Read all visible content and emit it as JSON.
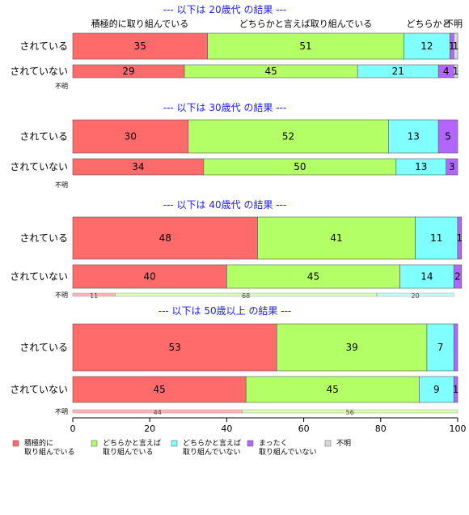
{
  "chart_data": {
    "type": "bar",
    "orientation": "horizontal",
    "stacked": true,
    "xlim": [
      0,
      100
    ],
    "xticks": [
      "0",
      "20",
      "40",
      "60",
      "80",
      "100"
    ],
    "header_labels": [
      "積極的に取り組んでいる",
      "どちらかと言えば取り組んでいる",
      "どちらかと",
      "不明"
    ],
    "legend": {
      "position": "bottom",
      "items": [
        {
          "name": "積極的に",
          "name2": "取り組んでいる",
          "color": "#ff6b6b"
        },
        {
          "name": "どちらかと言えば",
          "name2": "取り組んでいる",
          "color": "#b3ff66"
        },
        {
          "name": "どちらかと言えば",
          "name2": "取り組んでいない",
          "color": "#80ffff"
        },
        {
          "name": "まったく",
          "name2": "取り組んでいない",
          "color": "#b366ff"
        },
        {
          "name": "不明",
          "name2": "",
          "color": "#d9d9d9"
        }
      ]
    },
    "panels": [
      {
        "title": "--- 以下は 20歳代 の結果 ---",
        "rows": [
          {
            "label": "されている",
            "values": [
              35,
              51,
              12,
              1,
              1
            ],
            "labels": [
              "35",
              "51",
              "12",
              "1",
              "1"
            ]
          },
          {
            "label": "されていない",
            "values": [
              29,
              45,
              21,
              4,
              1
            ],
            "labels": [
              "29",
              "45",
              "21",
              "4",
              "1"
            ]
          }
        ],
        "unknown": {
          "label": "不明",
          "values": [],
          "labels": []
        }
      },
      {
        "title": "--- 以下は 30歳代 の結果 ---",
        "rows": [
          {
            "label": "されている",
            "values": [
              30,
              52,
              13,
              5,
              0
            ],
            "labels": [
              "30",
              "52",
              "13",
              "5",
              ""
            ]
          },
          {
            "label": "されていない",
            "values": [
              34,
              50,
              13,
              3,
              0
            ],
            "labels": [
              "34",
              "50",
              "13",
              "3",
              ""
            ]
          }
        ],
        "unknown": {
          "label": "不明",
          "values": [],
          "labels": []
        }
      },
      {
        "title": "--- 以下は 40歳代 の結果 ---",
        "rows": [
          {
            "label": "されている",
            "values": [
              48,
              41,
              11,
              1,
              0
            ],
            "labels": [
              "48",
              "41",
              "11",
              "1",
              ""
            ]
          },
          {
            "label": "されていない",
            "values": [
              40,
              45,
              14,
              2,
              0
            ],
            "labels": [
              "40",
              "45",
              "14",
              "2",
              ""
            ]
          }
        ],
        "unknown": {
          "label": "不明",
          "values": [
            11,
            68,
            20,
            0,
            0
          ],
          "labels": [
            "11",
            "68",
            "20",
            "",
            ""
          ]
        }
      },
      {
        "title": "--- 以下は 50歳以上 の結果 ---",
        "rows": [
          {
            "label": "されている",
            "values": [
              53,
              39,
              7,
              1,
              0
            ],
            "labels": [
              "53",
              "39",
              "7",
              "",
              ""
            ]
          },
          {
            "label": "されていない",
            "values": [
              45,
              45,
              9,
              1,
              0
            ],
            "labels": [
              "45",
              "45",
              "9",
              "1",
              ""
            ]
          }
        ],
        "unknown": {
          "label": "不明",
          "values": [
            44,
            56,
            0,
            0,
            0
          ],
          "labels": [
            "44",
            "56",
            "",
            "",
            ""
          ]
        }
      }
    ]
  }
}
